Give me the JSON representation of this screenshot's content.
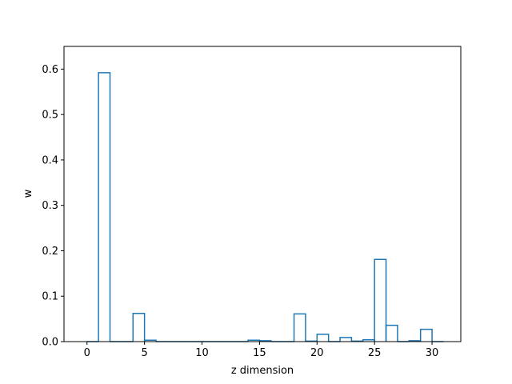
{
  "chart_data": {
    "type": "bar",
    "style": "step-histogram",
    "xlabel": "z dimension",
    "ylabel": "w",
    "xlim": [
      -2.0,
      32.5
    ],
    "ylim": [
      0,
      0.65
    ],
    "xticks": [
      0,
      5,
      10,
      15,
      20,
      25,
      30
    ],
    "yticks": [
      0.0,
      0.1,
      0.2,
      0.3,
      0.4,
      0.5,
      0.6
    ],
    "xtick_labels": [
      "0",
      "5",
      "10",
      "15",
      "20",
      "25",
      "30"
    ],
    "ytick_labels": [
      "0.0",
      "0.1",
      "0.2",
      "0.3",
      "0.4",
      "0.5",
      "0.6"
    ],
    "grid": false,
    "color": "#1f77b4",
    "categories": [
      0,
      1,
      2,
      3,
      4,
      5,
      6,
      7,
      8,
      9,
      10,
      11,
      12,
      13,
      14,
      15,
      16,
      17,
      18,
      19,
      20,
      21,
      22,
      23,
      24,
      25,
      26,
      27,
      28,
      29,
      30
    ],
    "values": [
      0.0,
      0.592,
      0.0,
      0.0,
      0.062,
      0.003,
      0.0,
      0.0,
      0.0,
      0.0,
      0.0,
      0.0,
      0.0,
      0.0,
      0.003,
      0.002,
      0.0,
      0.0,
      0.061,
      0.001,
      0.016,
      0.0,
      0.009,
      0.001,
      0.004,
      0.181,
      0.036,
      0.0,
      0.002,
      0.027,
      0.0
    ]
  }
}
